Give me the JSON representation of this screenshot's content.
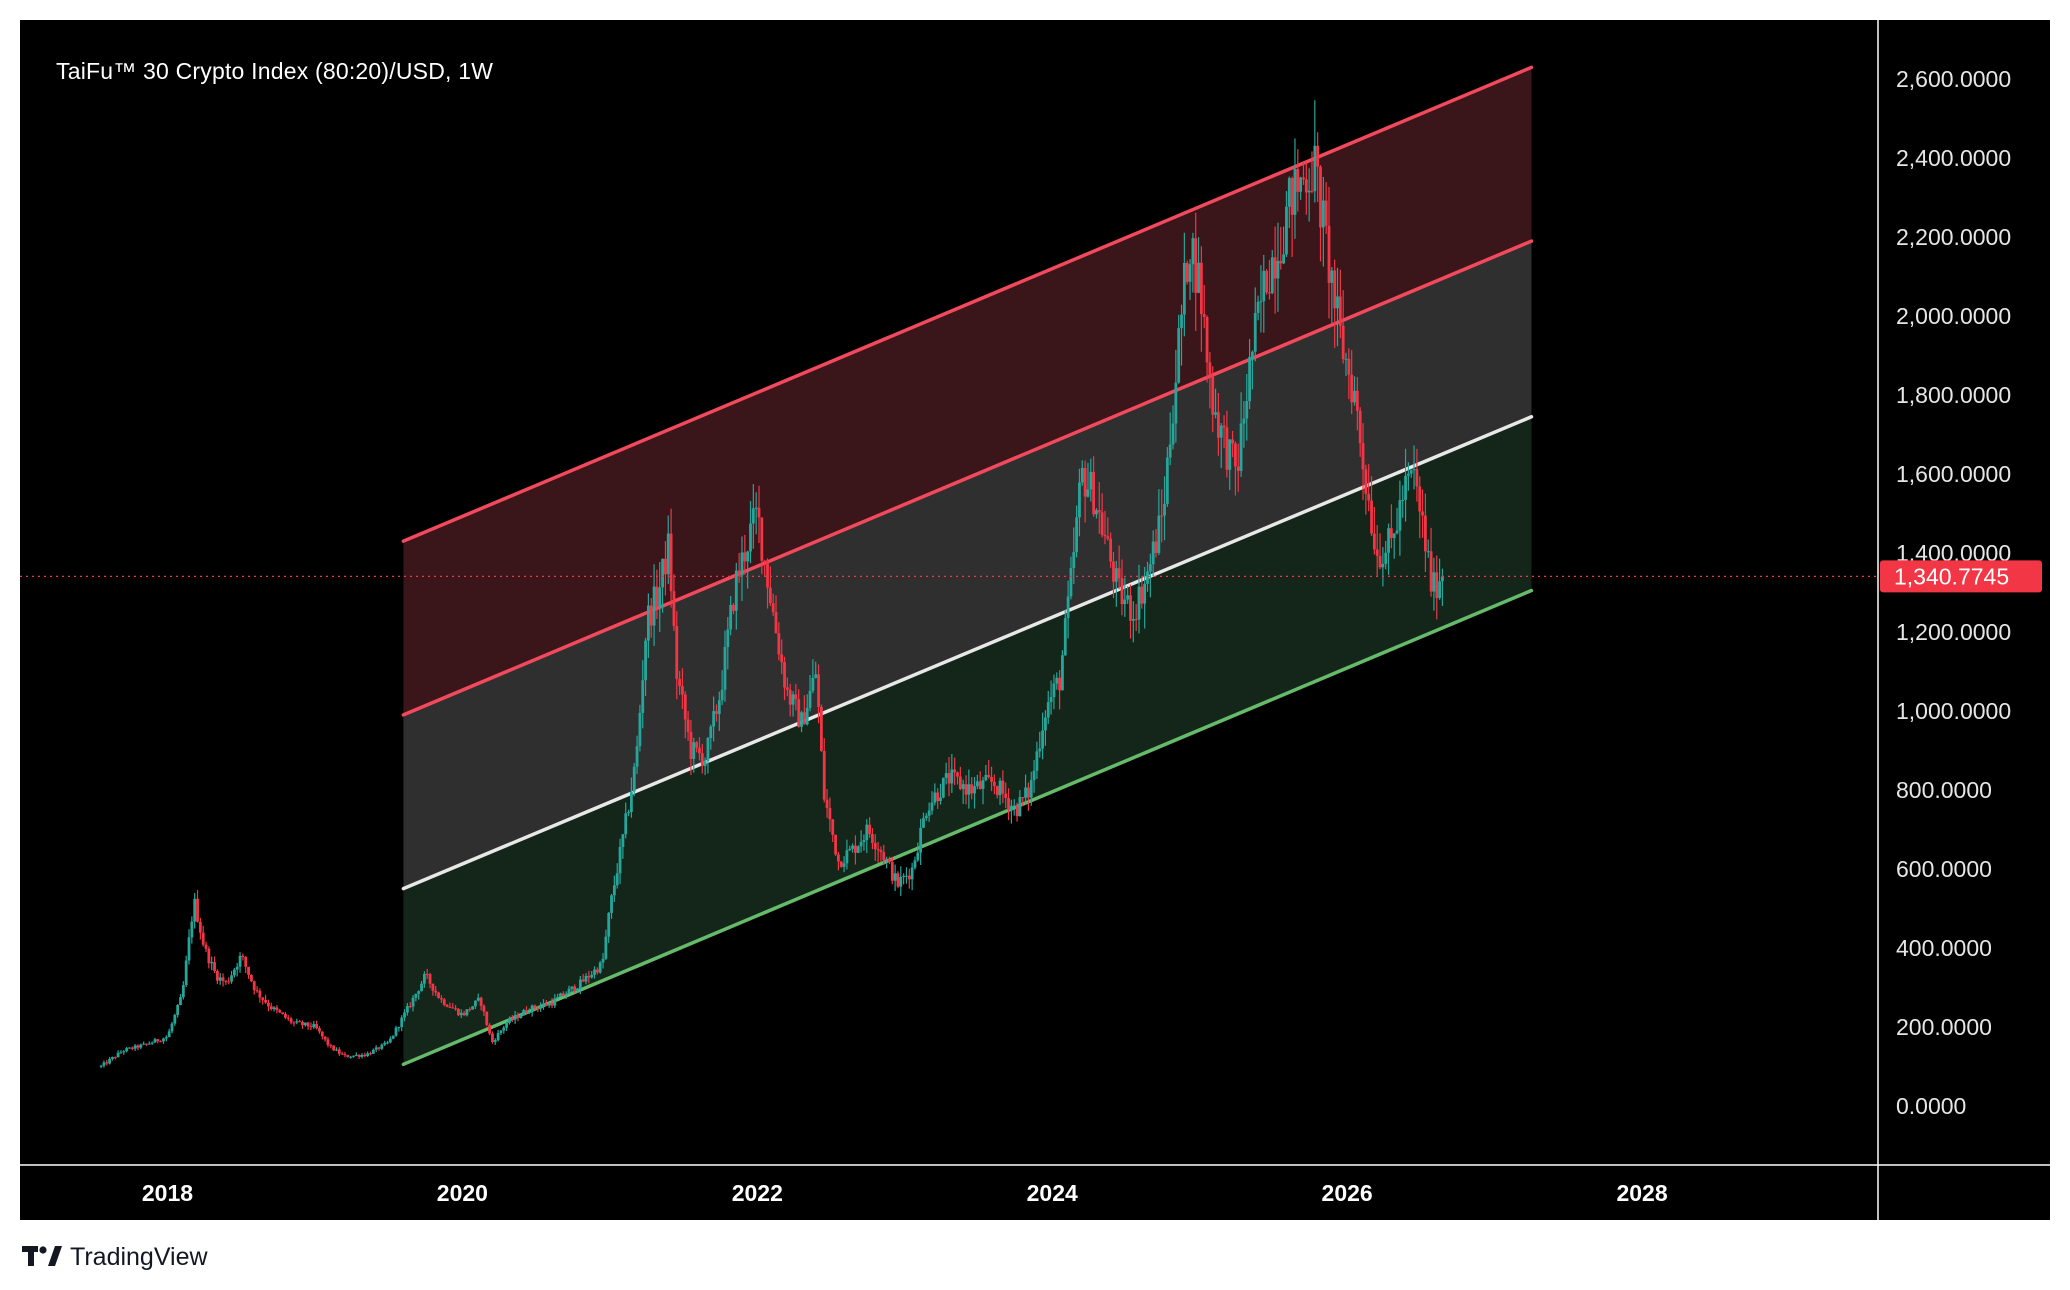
{
  "chart_data": {
    "type": "candlestick",
    "title": "TaiFu™ 30 Crypto Index (80:20)/USD, 1W",
    "timeframe": "1W",
    "xlabel": "",
    "ylabel": "",
    "x_ticks": [
      "2018",
      "2020",
      "2022",
      "2024",
      "2026",
      "2028"
    ],
    "y_ticks": [
      "0.0000",
      "200.0000",
      "400.0000",
      "600.0000",
      "800.0000",
      "1,000.0000",
      "1,200.0000",
      "1,400.0000",
      "1,600.0000",
      "1,800.0000",
      "2,000.0000",
      "2,200.0000",
      "2,400.0000",
      "2,600.0000"
    ],
    "xlim": [
      2017.0,
      2029.6
    ],
    "ylim": [
      -150,
      2750
    ],
    "last_price": 1340.7745,
    "last_price_label": "1,340.7745",
    "price_path": [
      [
        2017.55,
        100
      ],
      [
        2017.7,
        140
      ],
      [
        2017.85,
        155
      ],
      [
        2018.0,
        175
      ],
      [
        2018.1,
        280
      ],
      [
        2018.18,
        520
      ],
      [
        2018.25,
        400
      ],
      [
        2018.33,
        330
      ],
      [
        2018.4,
        310
      ],
      [
        2018.5,
        380
      ],
      [
        2018.6,
        290
      ],
      [
        2018.7,
        250
      ],
      [
        2018.85,
        210
      ],
      [
        2019.0,
        200
      ],
      [
        2019.1,
        150
      ],
      [
        2019.2,
        125
      ],
      [
        2019.35,
        130
      ],
      [
        2019.5,
        160
      ],
      [
        2019.65,
        260
      ],
      [
        2019.75,
        330
      ],
      [
        2019.85,
        270
      ],
      [
        2020.0,
        230
      ],
      [
        2020.12,
        270
      ],
      [
        2020.2,
        160
      ],
      [
        2020.3,
        210
      ],
      [
        2020.45,
        245
      ],
      [
        2020.6,
        260
      ],
      [
        2020.8,
        310
      ],
      [
        2020.95,
        360
      ],
      [
        2021.0,
        500
      ],
      [
        2021.1,
        700
      ],
      [
        2021.18,
        880
      ],
      [
        2021.25,
        1230
      ],
      [
        2021.33,
        1300
      ],
      [
        2021.4,
        1420
      ],
      [
        2021.45,
        1100
      ],
      [
        2021.55,
        900
      ],
      [
        2021.65,
        880
      ],
      [
        2021.75,
        1050
      ],
      [
        2021.85,
        1320
      ],
      [
        2021.95,
        1450
      ],
      [
        2022.0,
        1500
      ],
      [
        2022.05,
        1380
      ],
      [
        2022.12,
        1220
      ],
      [
        2022.2,
        1050
      ],
      [
        2022.3,
        970
      ],
      [
        2022.4,
        1100
      ],
      [
        2022.45,
        790
      ],
      [
        2022.55,
        620
      ],
      [
        2022.65,
        650
      ],
      [
        2022.75,
        700
      ],
      [
        2022.85,
        640
      ],
      [
        2022.95,
        560
      ],
      [
        2023.05,
        600
      ],
      [
        2023.15,
        760
      ],
      [
        2023.3,
        830
      ],
      [
        2023.45,
        800
      ],
      [
        2023.6,
        820
      ],
      [
        2023.75,
        750
      ],
      [
        2023.85,
        800
      ],
      [
        2023.95,
        1000
      ],
      [
        2024.05,
        1080
      ],
      [
        2024.12,
        1300
      ],
      [
        2024.2,
        1600
      ],
      [
        2024.28,
        1550
      ],
      [
        2024.35,
        1450
      ],
      [
        2024.45,
        1300
      ],
      [
        2024.55,
        1250
      ],
      [
        2024.65,
        1350
      ],
      [
        2024.75,
        1500
      ],
      [
        2024.85,
        1900
      ],
      [
        2024.93,
        2200
      ],
      [
        2025.0,
        2080
      ],
      [
        2025.08,
        1800
      ],
      [
        2025.15,
        1700
      ],
      [
        2025.25,
        1600
      ],
      [
        2025.35,
        1900
      ],
      [
        2025.45,
        2100
      ],
      [
        2025.55,
        2200
      ],
      [
        2025.62,
        2300
      ],
      [
        2025.7,
        2350
      ],
      [
        2025.78,
        2380
      ],
      [
        2025.85,
        2200
      ],
      [
        2025.95,
        1950
      ],
      [
        2026.05,
        1800
      ],
      [
        2026.12,
        1600
      ],
      [
        2026.2,
        1400
      ],
      [
        2026.3,
        1420
      ],
      [
        2026.38,
        1550
      ],
      [
        2026.45,
        1600
      ],
      [
        2026.52,
        1450
      ],
      [
        2026.58,
        1300
      ],
      [
        2026.62,
        1340
      ],
      [
        2026.65,
        1340.77
      ]
    ],
    "channel": {
      "x_start": 2019.6,
      "x_end": 2027.25,
      "lines": [
        {
          "role": "upper",
          "color": "#f24a5c",
          "y_start": 1430,
          "y_end": 2630
        },
        {
          "role": "upper-inner",
          "color": "#f24a5c",
          "y_start": 990,
          "y_end": 2190
        },
        {
          "role": "median",
          "color": "#e8e8e8",
          "y_start": 550,
          "y_end": 1745
        },
        {
          "role": "lower",
          "color": "#66bb6a",
          "y_start": 105,
          "y_end": 1305
        }
      ],
      "fills": [
        {
          "between": [
            "upper",
            "upper-inner"
          ],
          "color": "#3a1519"
        },
        {
          "between": [
            "upper-inner",
            "median"
          ],
          "color": "#2f2f2f"
        },
        {
          "between": [
            "median",
            "lower"
          ],
          "color": "#14261a"
        }
      ]
    },
    "grid": false,
    "legend": "none",
    "colors": {
      "background": "#000000",
      "up_candle": "#26a69a",
      "down_candle": "#f23645",
      "price_label_bg": "#f23645",
      "axis_text": "#e6e6e6",
      "border": "#ffffff"
    }
  },
  "brand": {
    "name": "TradingView",
    "logo_icon": "tradingview-logo-icon"
  }
}
